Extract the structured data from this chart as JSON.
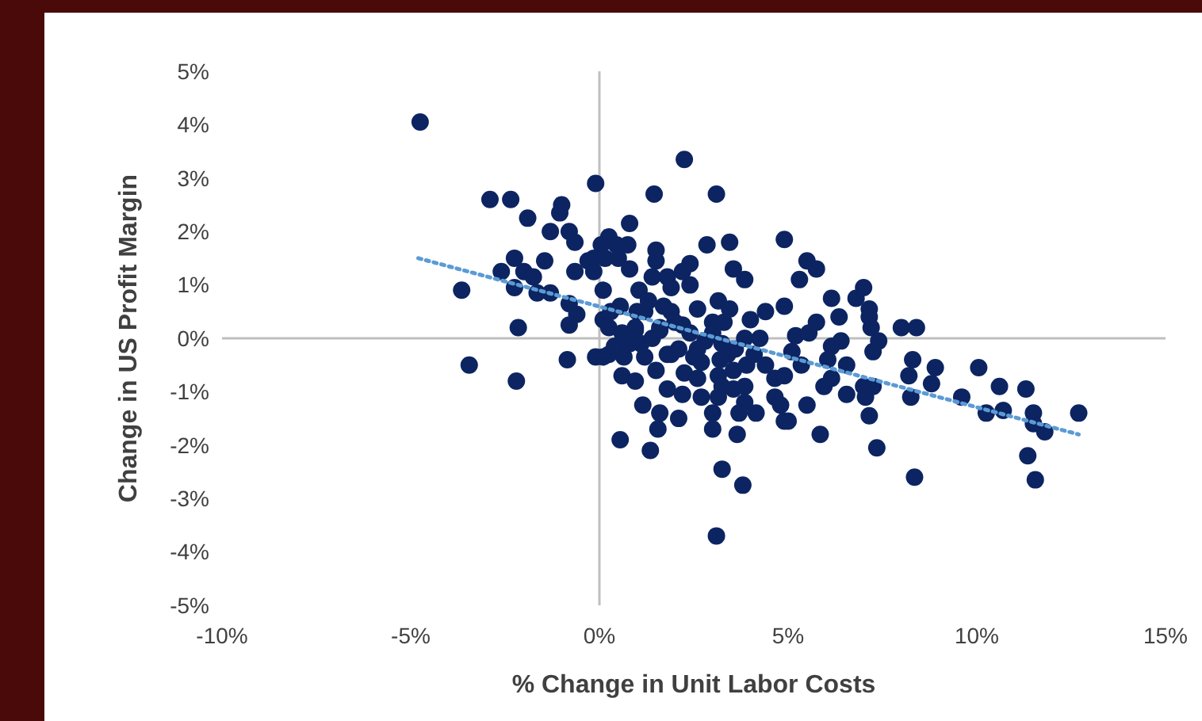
{
  "chart_data": {
    "type": "scatter",
    "xlabel": "% Change in Unit Labor Costs",
    "ylabel": "Change in US Profit Margin",
    "xlim": [
      -10,
      15
    ],
    "ylim": [
      -5,
      5
    ],
    "xticks": [
      {
        "value": -10,
        "label": "-10%"
      },
      {
        "value": -5,
        "label": "-5%"
      },
      {
        "value": 0,
        "label": "0%"
      },
      {
        "value": 5,
        "label": "5%"
      },
      {
        "value": 10,
        "label": "10%"
      },
      {
        "value": 15,
        "label": "15%"
      }
    ],
    "yticks": [
      {
        "value": -5,
        "label": "-5%"
      },
      {
        "value": -4,
        "label": "-4%"
      },
      {
        "value": -3,
        "label": "-3%"
      },
      {
        "value": -2,
        "label": "-2%"
      },
      {
        "value": -1,
        "label": "-1%"
      },
      {
        "value": 0,
        "label": "0%"
      },
      {
        "value": 1,
        "label": "1%"
      },
      {
        "value": 2,
        "label": "2%"
      },
      {
        "value": 3,
        "label": "3%"
      },
      {
        "value": 4,
        "label": "4%"
      },
      {
        "value": 5,
        "label": "5%"
      }
    ],
    "marker": "circle",
    "series": [
      {
        "color": "#0c2461",
        "x": [
          -4.75,
          -2.9,
          -2.35,
          -1.9,
          -1.0,
          -1.05,
          -1.3,
          -0.8,
          -0.65,
          -0.1,
          -2.25,
          -2.6,
          -1.45,
          -2.0,
          -1.75,
          -2.25,
          -1.65,
          -1.3,
          -3.65,
          -0.65,
          -0.3,
          -0.8,
          -0.6,
          -0.8,
          -2.15,
          -3.45,
          -2.2,
          -0.85,
          -0.1,
          2.25,
          1.45,
          3.1,
          0.8,
          0.25,
          0.05,
          0.45,
          0.75,
          -0.15,
          0.15,
          0.5,
          1.5,
          1.5,
          2.85,
          3.45,
          4.9,
          2.4,
          3.55,
          3.85,
          -0.15,
          0.8,
          1.4,
          1.8,
          2.2,
          1.05,
          1.9,
          2.4,
          3.15,
          3.45,
          4.4,
          4.9,
          4.0,
          0.1,
          0.55,
          1.2,
          1.9,
          2.6,
          3.0,
          0.95,
          1.6,
          2.2,
          0.1,
          0.25,
          0.95,
          1.6,
          0.25,
          0.1,
          0.65,
          1.2,
          1.9,
          2.6,
          3.25,
          3.85,
          4.25,
          0.6,
          0.95,
          2.25,
          2.6,
          1.8,
          2.2,
          2.7,
          3.15,
          3.15,
          3.55,
          3.55,
          3.85,
          3.85,
          4.65,
          4.65,
          1.15,
          1.6,
          2.1,
          3.0,
          3.7,
          4.15,
          4.8,
          4.9,
          1.55,
          3.0,
          3.65,
          0.55,
          1.35,
          3.25,
          3.8,
          3.1,
          1.8,
          3.25,
          5.5,
          5.75,
          5.3,
          6.15,
          6.8,
          7.0,
          7.15,
          7.15,
          7.2,
          6.35,
          5.75,
          8.0,
          8.4,
          5.2,
          5.55,
          6.4,
          6.15,
          7.4,
          7.25,
          5.1,
          6.05,
          5.35,
          6.55,
          8.3,
          8.2,
          8.9,
          8.8,
          10.05,
          6.15,
          5.95,
          7.0,
          7.25,
          4.9,
          6.55,
          7.05,
          8.25,
          9.6,
          10.6,
          11.3,
          5.5,
          7.15,
          5.0,
          10.25,
          10.7,
          11.5,
          11.5,
          11.8,
          5.85,
          7.35,
          11.35,
          8.35,
          11.55,
          12.7,
          1.0,
          1.3,
          1.7,
          2.0,
          2.4,
          2.8,
          3.0,
          3.4,
          3.6,
          3.9,
          2.7,
          0.3,
          0.6,
          1.1,
          3.3,
          2.1,
          0.8,
          1.4,
          4.1,
          4.4,
          3.2,
          2.5,
          1.5,
          0.4
        ],
        "values": [
          4.05,
          2.6,
          2.6,
          2.25,
          2.5,
          2.35,
          2.0,
          2.0,
          1.8,
          2.9,
          1.5,
          1.25,
          1.45,
          1.25,
          1.15,
          0.95,
          0.85,
          0.85,
          0.9,
          1.25,
          1.45,
          0.65,
          0.45,
          0.25,
          0.2,
          -0.5,
          -0.8,
          -0.4,
          -0.35,
          3.35,
          2.7,
          2.7,
          2.15,
          1.9,
          1.75,
          1.75,
          1.75,
          1.5,
          1.5,
          1.5,
          1.65,
          1.45,
          1.75,
          1.8,
          1.85,
          1.4,
          1.3,
          1.1,
          1.25,
          1.3,
          1.15,
          1.15,
          1.25,
          0.9,
          0.95,
          1.0,
          0.7,
          0.55,
          0.5,
          0.6,
          0.35,
          0.9,
          0.6,
          0.5,
          0.5,
          0.55,
          0.3,
          0.2,
          0.2,
          0.25,
          0.35,
          0.2,
          0.15,
          0.15,
          -0.3,
          -0.35,
          -0.35,
          -0.35,
          -0.3,
          -0.2,
          -0.1,
          0.0,
          0.0,
          -0.7,
          -0.8,
          -0.65,
          -0.75,
          -0.95,
          -1.05,
          -1.1,
          -1.1,
          -0.7,
          -0.6,
          -0.95,
          -1.2,
          -0.9,
          -0.75,
          -1.1,
          -1.25,
          -1.4,
          -1.5,
          -1.4,
          -1.4,
          -1.4,
          -1.25,
          -1.55,
          -1.7,
          -1.7,
          -1.8,
          -1.9,
          -2.1,
          -2.45,
          -2.75,
          -3.7,
          -0.3,
          -0.9,
          1.45,
          1.3,
          1.1,
          0.75,
          0.75,
          0.95,
          0.55,
          0.4,
          0.2,
          0.4,
          0.3,
          0.2,
          0.2,
          0.05,
          0.1,
          -0.05,
          -0.15,
          -0.05,
          -0.25,
          -0.25,
          -0.4,
          -0.5,
          -0.5,
          -0.4,
          -0.7,
          -0.55,
          -0.85,
          -0.55,
          -0.75,
          -0.9,
          -0.9,
          -0.9,
          -0.7,
          -1.05,
          -1.1,
          -1.1,
          -1.1,
          -0.9,
          -0.95,
          -1.25,
          -1.45,
          -1.55,
          -1.4,
          -1.35,
          -1.4,
          -1.6,
          -1.75,
          -1.8,
          -2.05,
          -2.2,
          -2.6,
          -2.65,
          -1.4,
          0.5,
          0.7,
          0.6,
          0.3,
          0.1,
          -0.05,
          0.1,
          -0.3,
          -0.2,
          -0.5,
          -0.45,
          0.5,
          0.1,
          -0.1,
          0.3,
          -0.2,
          -0.1,
          0.0,
          -0.3,
          -0.5,
          -0.4,
          -0.35,
          -0.6,
          -0.15
        ]
      },
      {
        "type": "line",
        "color": "#5b9bd5",
        "line_style": "dotted",
        "marker": "none",
        "x": [
          -4.8,
          12.7
        ],
        "values": [
          1.5,
          -1.8
        ]
      }
    ]
  }
}
